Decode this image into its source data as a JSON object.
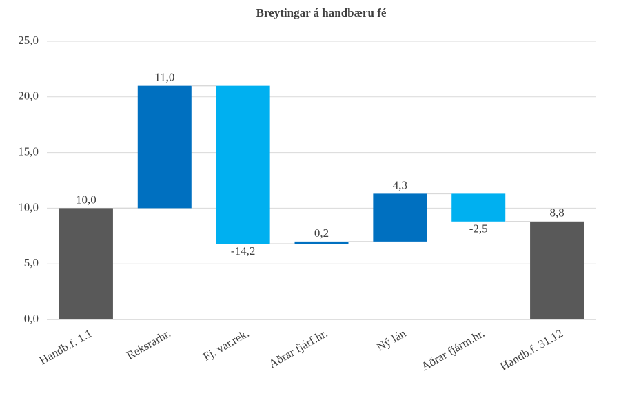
{
  "chart_data": {
    "type": "waterfall",
    "title": "Breytingar á handbæru fé",
    "categories": [
      "Handb.f. 1.1",
      "Reksrarhr.",
      "Fj. var.rek.",
      "Aðrar fjárf.hr.",
      "Ný lán",
      "Aðrar fjárm.hr.",
      "Handb.f. 31.12"
    ],
    "values": [
      10.0,
      11.0,
      -14.2,
      0.2,
      4.3,
      -2.5,
      8.8
    ],
    "value_labels": [
      "10,0",
      "11,0",
      "-14,2",
      "0,2",
      "4,3",
      "-2,5",
      "8,8"
    ],
    "is_total": [
      true,
      false,
      false,
      false,
      false,
      false,
      true
    ],
    "colors": {
      "total": "#595959",
      "increase": "#0070c0",
      "decrease": "#00b0f0"
    },
    "ylim": [
      0,
      25
    ],
    "yticks": [
      {
        "value": 0,
        "label": "0,0"
      },
      {
        "value": 5,
        "label": "5,0"
      },
      {
        "value": 10,
        "label": "10,0"
      },
      {
        "value": 15,
        "label": "15,0"
      },
      {
        "value": 20,
        "label": "20,0"
      },
      {
        "value": 25,
        "label": "25,0"
      }
    ],
    "grid": true
  }
}
